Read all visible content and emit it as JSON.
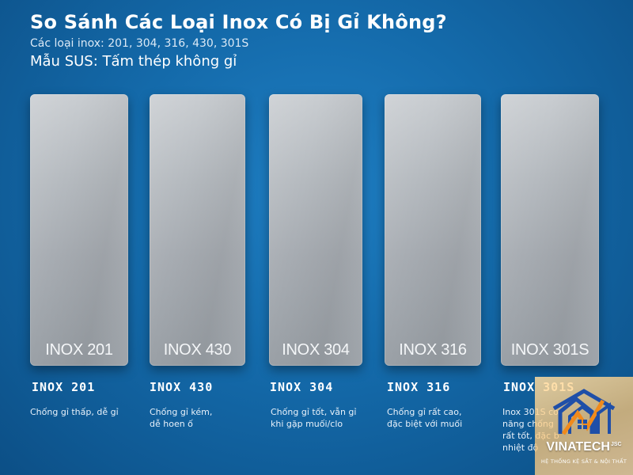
{
  "header": {
    "title": "So Sánh Các Loại Inox Có Bị Gỉ Không?",
    "subtitle": "Các loại inox: 201, 304, 316, 430, 301S",
    "sample_label": "Mẫu SUS: Tấm thép không gỉ"
  },
  "plates": [
    {
      "label": "INOX 201",
      "name": "INOX 201",
      "desc_lines": [
        "Chống gỉ thấp, dễ gỉ"
      ]
    },
    {
      "label": "INOX 430",
      "name": "INOX 430",
      "desc_lines": [
        "Chống gỉ kém,",
        "dễ hoen ố"
      ]
    },
    {
      "label": "INOX 304",
      "name": "INOX 304",
      "desc_lines": [
        "Chống gỉ tốt, vẫn gỉ",
        "khi gặp muối/clo"
      ]
    },
    {
      "label": "INOX 316",
      "name": "INOX 316",
      "desc_lines": [
        "Chống gỉ rất cao,",
        "đặc biệt với muối"
      ]
    },
    {
      "label": "INOX 301S",
      "name": "INOX 301S",
      "desc_lines": [
        "Inox 301S có",
        "năng chống",
        "rất tốt, đặc b",
        "nhiệt độ"
      ]
    }
  ],
  "logo": {
    "name": "VINATECH",
    "suffix": "JSC",
    "tagline": "HỆ THỐNG KỆ SẮT & NỘI THẤT"
  },
  "colors": {
    "background": "#146aaa",
    "plate_metal": "#b6bbc0",
    "logo_accent": "#1f4fa8",
    "logo_orange": "#f08a1c"
  }
}
